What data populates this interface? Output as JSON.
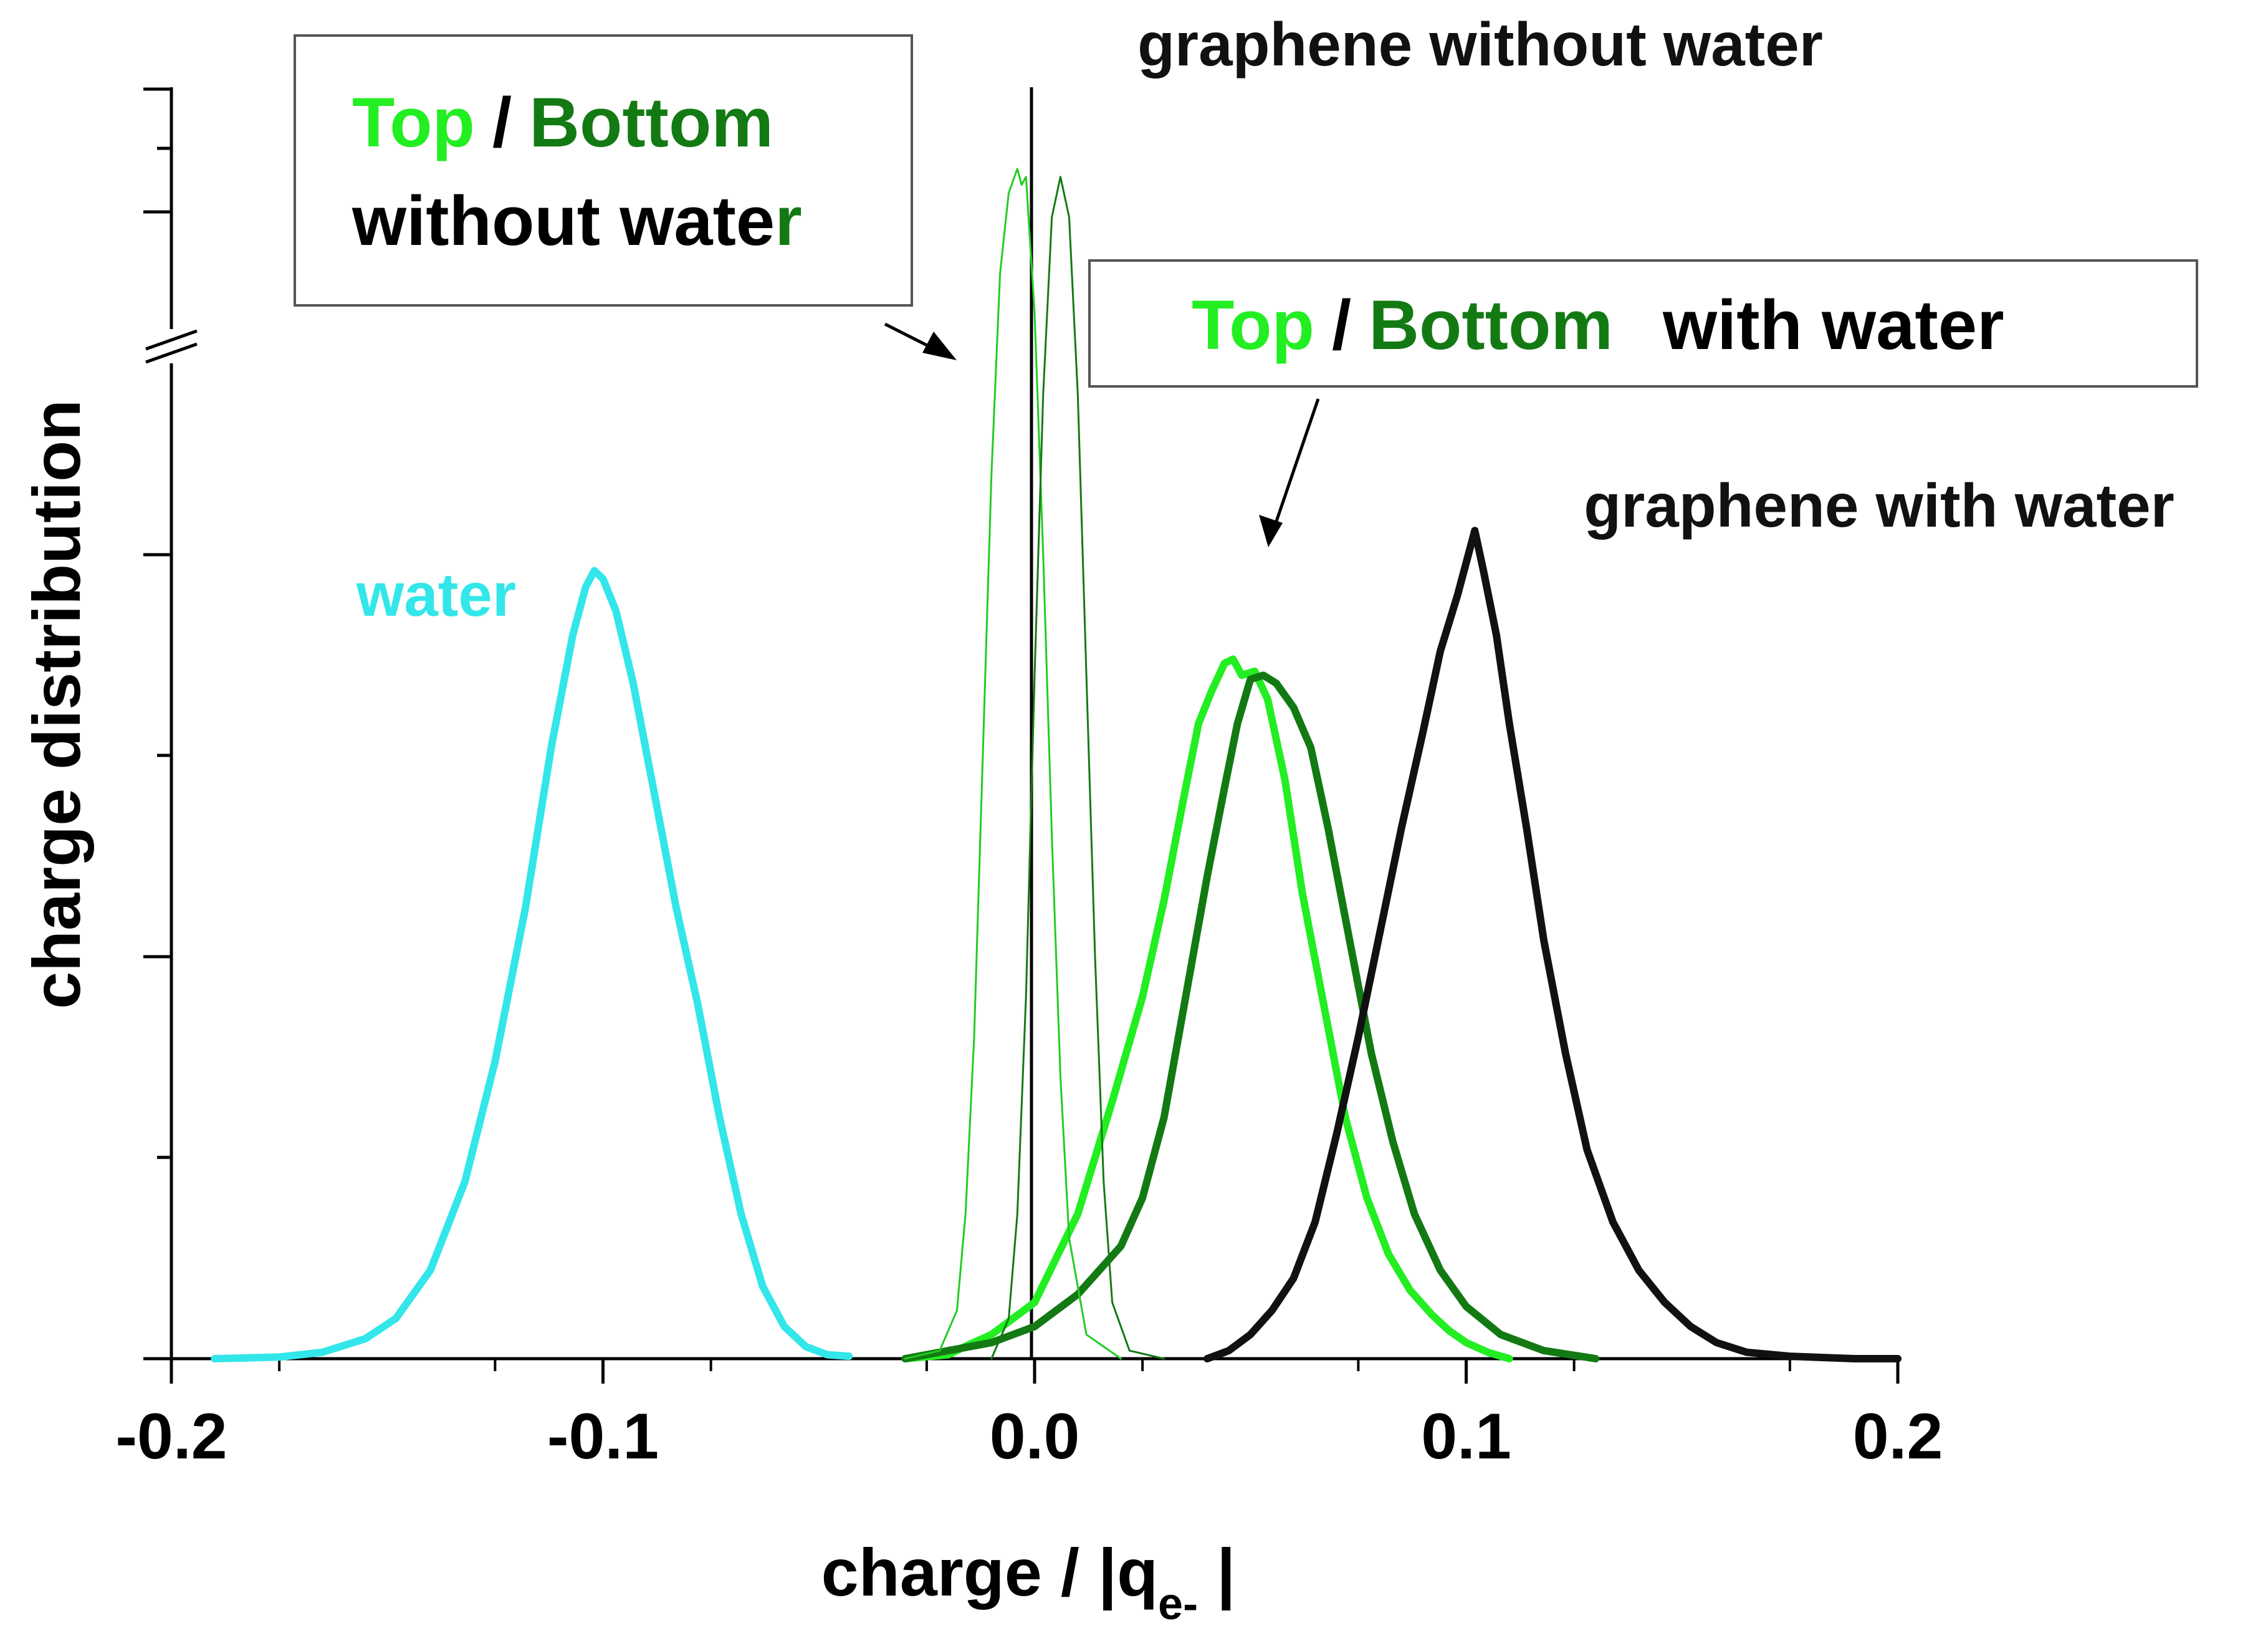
{
  "chart_data": {
    "type": "line",
    "title": "",
    "xlabel": "charge / |q",
    "xlabel_subscript": "e-",
    "xlabel_suffix": " |",
    "ylabel": "charge distribution",
    "xlim": [
      -0.2,
      0.2
    ],
    "ylim": [
      0,
      1
    ],
    "x_ticks": [
      -0.2,
      -0.1,
      0.0,
      0.1,
      0.2
    ],
    "x_tick_labels": [
      "-0.2",
      "-0.1",
      "0.0",
      "0.1",
      "0.2"
    ],
    "y_tick_labels_shown": false,
    "y_axis_break": true,
    "grid": false,
    "series": [
      {
        "name": "water",
        "color": "#33e6ea",
        "weight": "thick",
        "x": [
          -0.19,
          -0.175,
          -0.165,
          -0.155,
          -0.148,
          -0.14,
          -0.132,
          -0.125,
          -0.118,
          -0.112,
          -0.107,
          -0.104,
          -0.102,
          -0.1,
          -0.097,
          -0.093,
          -0.088,
          -0.083,
          -0.078,
          -0.073,
          -0.068,
          -0.063,
          -0.058,
          -0.053,
          -0.048,
          -0.043
        ],
        "y": [
          0.0,
          0.002,
          0.008,
          0.025,
          0.05,
          0.11,
          0.22,
          0.37,
          0.56,
          0.76,
          0.9,
          0.96,
          0.98,
          0.97,
          0.93,
          0.84,
          0.7,
          0.56,
          0.44,
          0.3,
          0.18,
          0.09,
          0.04,
          0.015,
          0.005,
          0.003
        ]
      },
      {
        "name": "Top with water",
        "color": "#22ee22",
        "weight": "thick",
        "x": [
          -0.03,
          -0.02,
          -0.015,
          -0.01,
          0.0,
          0.01,
          0.018,
          0.025,
          0.03,
          0.035,
          0.038,
          0.041,
          0.044,
          0.046,
          0.048,
          0.051,
          0.054,
          0.058,
          0.062,
          0.067,
          0.072,
          0.077,
          0.082,
          0.087,
          0.092,
          0.096,
          0.1,
          0.105,
          0.11
        ],
        "y": [
          0.0,
          0.005,
          0.018,
          0.03,
          0.07,
          0.18,
          0.32,
          0.45,
          0.57,
          0.71,
          0.79,
          0.83,
          0.865,
          0.87,
          0.85,
          0.855,
          0.82,
          0.72,
          0.58,
          0.44,
          0.3,
          0.2,
          0.13,
          0.085,
          0.055,
          0.035,
          0.02,
          0.008,
          0.0
        ]
      },
      {
        "name": "Bottom with water",
        "color": "#137a13",
        "weight": "thick",
        "x": [
          -0.03,
          -0.01,
          0.0,
          0.01,
          0.02,
          0.025,
          0.03,
          0.035,
          0.04,
          0.044,
          0.047,
          0.05,
          0.053,
          0.056,
          0.06,
          0.064,
          0.068,
          0.073,
          0.078,
          0.083,
          0.088,
          0.094,
          0.1,
          0.108,
          0.118,
          0.13
        ],
        "y": [
          0.0,
          0.02,
          0.04,
          0.08,
          0.14,
          0.2,
          0.3,
          0.45,
          0.6,
          0.71,
          0.79,
          0.845,
          0.85,
          0.84,
          0.81,
          0.76,
          0.66,
          0.52,
          0.38,
          0.27,
          0.18,
          0.11,
          0.065,
          0.03,
          0.01,
          0.0
        ]
      },
      {
        "name": "graphene with water",
        "color": "#111111",
        "weight": "thick",
        "x": [
          0.04,
          0.045,
          0.05,
          0.055,
          0.06,
          0.065,
          0.07,
          0.075,
          0.08,
          0.085,
          0.09,
          0.094,
          0.098,
          0.1,
          0.102,
          0.104,
          0.107,
          0.11,
          0.114,
          0.118,
          0.123,
          0.128,
          0.134,
          0.14,
          0.146,
          0.152,
          0.158,
          0.165,
          0.175,
          0.19,
          0.2
        ],
        "y": [
          0.0,
          0.01,
          0.03,
          0.06,
          0.1,
          0.17,
          0.28,
          0.4,
          0.53,
          0.66,
          0.78,
          0.88,
          0.95,
          0.99,
          1.03,
          0.98,
          0.9,
          0.79,
          0.66,
          0.52,
          0.38,
          0.26,
          0.17,
          0.11,
          0.07,
          0.04,
          0.02,
          0.008,
          0.003,
          0.0,
          0.0
        ]
      },
      {
        "name": "Top without water",
        "color": "#22cc22",
        "weight": "thin",
        "x": [
          -0.03,
          -0.022,
          -0.018,
          -0.016,
          -0.014,
          -0.012,
          -0.01,
          -0.008,
          -0.006,
          -0.004,
          -0.003,
          -0.002,
          0.0,
          0.002,
          0.004,
          0.006,
          0.008,
          0.012,
          0.02
        ],
        "y": [
          0.0,
          0.01,
          0.06,
          0.18,
          0.4,
          0.75,
          1.1,
          1.35,
          1.45,
          1.48,
          1.46,
          1.47,
          1.3,
          1.0,
          0.65,
          0.35,
          0.15,
          0.03,
          0.0
        ]
      },
      {
        "name": "Bottom without water",
        "color": "#137a13",
        "weight": "thin",
        "x": [
          -0.01,
          -0.006,
          -0.004,
          -0.002,
          0.0,
          0.002,
          0.004,
          0.006,
          0.008,
          0.01,
          0.012,
          0.014,
          0.016,
          0.018,
          0.022,
          0.03
        ],
        "y": [
          0.0,
          0.05,
          0.18,
          0.45,
          0.85,
          1.2,
          1.42,
          1.47,
          1.42,
          1.2,
          0.85,
          0.5,
          0.22,
          0.07,
          0.01,
          0.0
        ]
      }
    ],
    "annotations": {
      "water_label": "water",
      "graphene_with_water_label": "graphene with water",
      "graphene_without_water_label": "graphene without water",
      "box_without": {
        "top_word": "Top",
        "slash": "/",
        "bottom_word": "Bottom",
        "line2_main": "without wate",
        "line2_last": "r"
      },
      "box_with": {
        "top_word": "Top",
        "slash": "/",
        "bottom_word": "Bottom",
        "suffix": "with water"
      }
    },
    "colors": {
      "water": "#33e6ea",
      "top": "#22ee22",
      "bottom": "#137a13",
      "graphene": "#111111",
      "axis": "#000000"
    }
  }
}
